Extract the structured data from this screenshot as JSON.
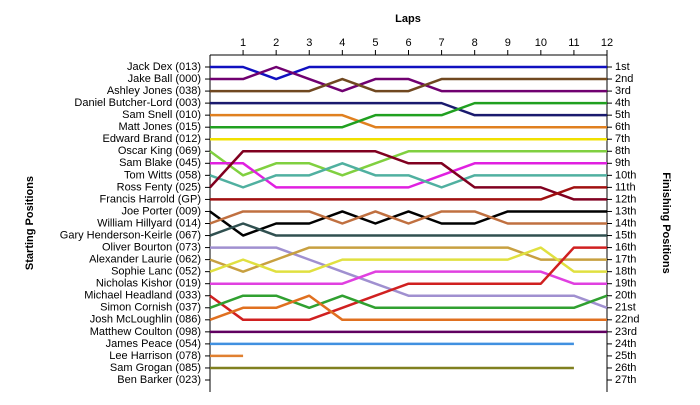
{
  "chart_data": {
    "type": "line",
    "title": "Laps",
    "y_label": "Starting Positions",
    "y2_label": "Finishing Positions",
    "x": [
      0,
      1,
      2,
      3,
      4,
      5,
      6,
      7,
      8,
      9,
      10,
      11,
      12
    ],
    "xlim": [
      0,
      12
    ],
    "xticks": [
      1,
      2,
      3,
      4,
      5,
      6,
      7,
      8,
      9,
      10,
      11,
      12
    ],
    "ylim": [
      1,
      27
    ],
    "y2ticks": [
      {
        "value": 1,
        "label": "1st"
      },
      {
        "value": 2,
        "label": "2nd"
      },
      {
        "value": 3,
        "label": "3rd"
      },
      {
        "value": 4,
        "label": "4th"
      },
      {
        "value": 5,
        "label": "5th"
      },
      {
        "value": 6,
        "label": "6th"
      },
      {
        "value": 7,
        "label": "7th"
      },
      {
        "value": 8,
        "label": "8th"
      },
      {
        "value": 9,
        "label": "9th"
      },
      {
        "value": 10,
        "label": "10th"
      },
      {
        "value": 11,
        "label": "11th"
      },
      {
        "value": 12,
        "label": "12th"
      },
      {
        "value": 13,
        "label": "13th"
      },
      {
        "value": 14,
        "label": "14th"
      },
      {
        "value": 15,
        "label": "15th"
      },
      {
        "value": 16,
        "label": "16th"
      },
      {
        "value": 17,
        "label": "17th"
      },
      {
        "value": 18,
        "label": "18th"
      },
      {
        "value": 19,
        "label": "19th"
      },
      {
        "value": 20,
        "label": "20th"
      },
      {
        "value": 21,
        "label": "21st"
      },
      {
        "value": 22,
        "label": "22nd"
      },
      {
        "value": 23,
        "label": "23rd"
      },
      {
        "value": 24,
        "label": "24th"
      },
      {
        "value": 25,
        "label": "25th"
      },
      {
        "value": 26,
        "label": "26th"
      },
      {
        "value": 27,
        "label": "27th"
      }
    ],
    "series": [
      {
        "name": "Jack Dex (013)",
        "color": "#1010c0",
        "values": [
          1,
          1,
          2,
          1,
          1,
          1,
          1,
          1,
          1,
          1,
          1,
          1,
          1
        ]
      },
      {
        "name": "Jake Ball (000)",
        "color": "#700070",
        "values": [
          2,
          2,
          1,
          2,
          3,
          2,
          2,
          3,
          3,
          3,
          3,
          3,
          3
        ]
      },
      {
        "name": "Ashley Jones (038)",
        "color": "#704820",
        "values": [
          3,
          3,
          3,
          3,
          2,
          3,
          3,
          2,
          2,
          2,
          2,
          2,
          2
        ]
      },
      {
        "name": "Daniel Butcher-Lord (003)",
        "color": "#1a1a6e",
        "values": [
          4,
          4,
          4,
          4,
          4,
          4,
          4,
          4,
          5,
          5,
          5,
          5,
          5
        ]
      },
      {
        "name": "Sam Snell (010)",
        "color": "#e08020",
        "values": [
          5,
          5,
          5,
          5,
          5,
          6,
          6,
          6,
          6,
          6,
          6,
          6,
          6
        ]
      },
      {
        "name": "Matt Jones (015)",
        "color": "#20a020",
        "values": [
          6,
          6,
          6,
          6,
          6,
          5,
          5,
          5,
          4,
          4,
          4,
          4,
          4
        ]
      },
      {
        "name": "Edward Brand (012)",
        "color": "#f0e000",
        "values": [
          7,
          7,
          7,
          7,
          7,
          7,
          7,
          7,
          7,
          7,
          7,
          7,
          7
        ]
      },
      {
        "name": "Oscar King (069)",
        "color": "#80d040",
        "values": [
          8,
          10,
          9,
          9,
          10,
          9,
          8,
          8,
          8,
          8,
          8,
          8,
          8
        ]
      },
      {
        "name": "Sam Blake (045)",
        "color": "#e020e0",
        "values": [
          9,
          9,
          11,
          11,
          11,
          11,
          11,
          10,
          9,
          9,
          9,
          9,
          9
        ]
      },
      {
        "name": "Tom Witts (058)",
        "color": "#50b0a0",
        "values": [
          10,
          11,
          10,
          10,
          9,
          10,
          10,
          11,
          10,
          10,
          10,
          10,
          10
        ]
      },
      {
        "name": "Ross Fenty (025)",
        "color": "#800020",
        "values": [
          11,
          8,
          8,
          8,
          8,
          8,
          9,
          9,
          11,
          11,
          11,
          12,
          12
        ]
      },
      {
        "name": "Francis Harrold (GP)",
        "color": "#a01010",
        "values": [
          12,
          12,
          12,
          12,
          12,
          12,
          12,
          12,
          12,
          12,
          12,
          11,
          11
        ]
      },
      {
        "name": "Joe Porter (009)",
        "color": "#000000",
        "values": [
          13,
          15,
          14,
          14,
          13,
          14,
          13,
          14,
          14,
          13,
          13,
          13,
          13
        ]
      },
      {
        "name": "William Hillyard (014)",
        "color": "#c07040",
        "values": [
          14,
          13,
          13,
          13,
          14,
          13,
          14,
          13,
          13,
          14,
          14,
          14,
          14
        ]
      },
      {
        "name": "Gary Henderson-Keirle (067)",
        "color": "#305050",
        "values": [
          15,
          14,
          15,
          15,
          15,
          15,
          15,
          15,
          15,
          15,
          15,
          15,
          15
        ]
      },
      {
        "name": "Oliver Bourton (073)",
        "color": "#a090d0",
        "values": [
          16,
          16,
          16,
          17,
          18,
          19,
          20,
          20,
          20,
          20,
          20,
          20,
          21
        ]
      },
      {
        "name": "Alexander Laurie (062)",
        "color": "#c8a040",
        "values": [
          17,
          18,
          17,
          16,
          16,
          16,
          16,
          16,
          16,
          16,
          17,
          17,
          17
        ]
      },
      {
        "name": "Sophie Lanc (052)",
        "color": "#e0e040",
        "values": [
          18,
          17,
          18,
          18,
          17,
          17,
          17,
          17,
          17,
          17,
          16,
          18,
          18
        ]
      },
      {
        "name": "Nicholas Kishor (019)",
        "color": "#e040e0",
        "values": [
          19,
          19,
          19,
          19,
          19,
          18,
          18,
          18,
          18,
          18,
          18,
          19,
          19
        ]
      },
      {
        "name": "Michael Headland (033)",
        "color": "#d02020",
        "values": [
          20,
          22,
          22,
          22,
          21,
          20,
          19,
          19,
          19,
          19,
          19,
          16,
          16
        ]
      },
      {
        "name": "Simon Cornish (037)",
        "color": "#30a030",
        "values": [
          21,
          20,
          20,
          21,
          20,
          21,
          21,
          21,
          21,
          21,
          21,
          21,
          20
        ]
      },
      {
        "name": "Josh McLoughlin (086)",
        "color": "#e07020",
        "values": [
          22,
          21,
          21,
          20,
          22,
          22,
          22,
          22,
          22,
          22,
          22,
          22,
          22
        ]
      },
      {
        "name": "Matthew Coulton (098)",
        "color": "#600060",
        "values": [
          23,
          23,
          23,
          23,
          23,
          23,
          23,
          23,
          23,
          23,
          23,
          23,
          23
        ]
      },
      {
        "name": "James Peace (054)",
        "color": "#4090e0",
        "values": [
          24,
          24,
          24,
          24,
          24,
          24,
          24,
          24,
          24,
          24,
          24,
          24,
          null
        ]
      },
      {
        "name": "Lee Harrison (078)",
        "color": "#e08030",
        "values": [
          25,
          25,
          null,
          null,
          null,
          null,
          null,
          null,
          null,
          null,
          null,
          null,
          null
        ]
      },
      {
        "name": "Sam Grogan (085)",
        "color": "#808020",
        "values": [
          26,
          26,
          26,
          26,
          26,
          26,
          26,
          26,
          26,
          26,
          26,
          26,
          null
        ]
      },
      {
        "name": "Ben Barker (023)",
        "color": "#888888",
        "values": [
          27,
          null,
          null,
          null,
          null,
          null,
          null,
          null,
          null,
          null,
          null,
          null,
          null
        ]
      }
    ]
  }
}
